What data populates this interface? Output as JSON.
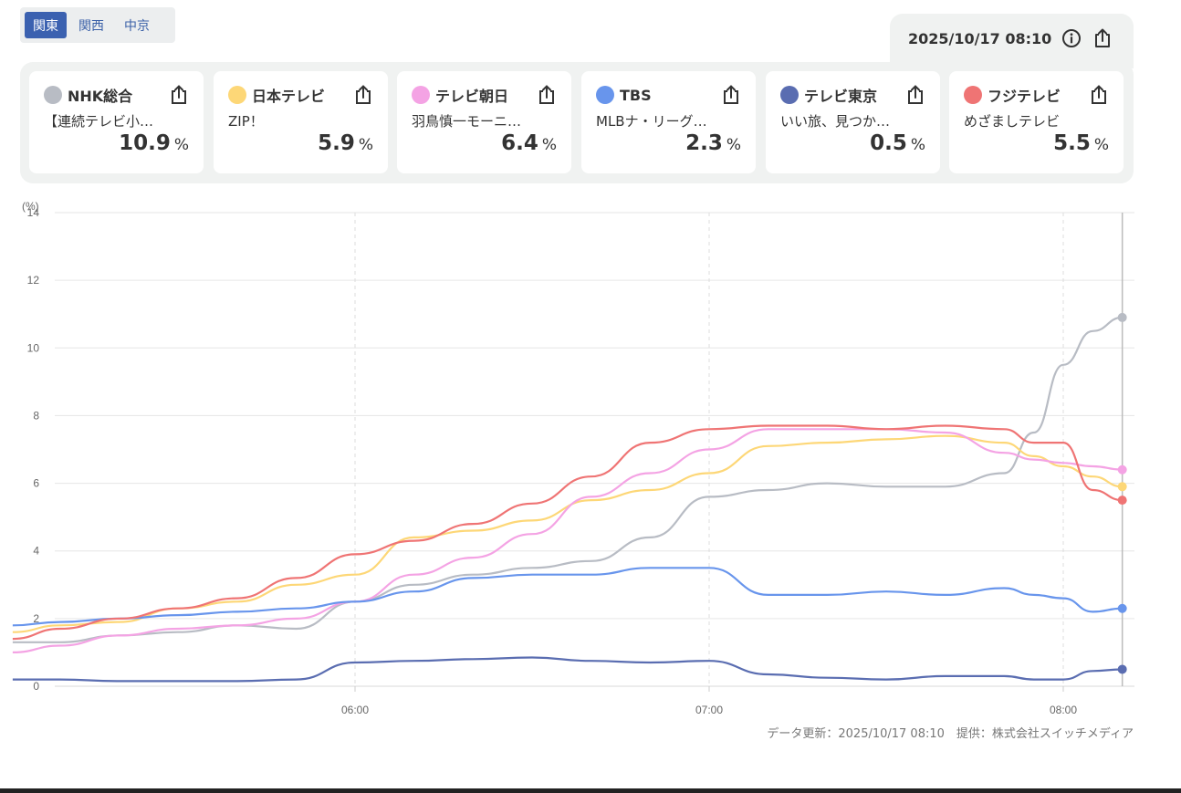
{
  "regions": [
    "関東",
    "関西",
    "中京"
  ],
  "active_region": "関東",
  "timestamp": "2025/10/17 08:10",
  "icons": {
    "info": "info-icon",
    "share": "share-icon"
  },
  "channels": [
    {
      "name": "NHK総合",
      "program": "【連続テレビ小…",
      "rating": "10.9",
      "unit": "%",
      "color": "#b8bcc4"
    },
    {
      "name": "日本テレビ",
      "program": "ZIP！",
      "rating": "5.9",
      "unit": "%",
      "color": "#fdd777"
    },
    {
      "name": "テレビ朝日",
      "program": "羽鳥慎一モーニ…",
      "rating": "6.4",
      "unit": "%",
      "color": "#f4a3e4"
    },
    {
      "name": "TBS",
      "program": "MLBナ・リーグ…",
      "rating": "2.3",
      "unit": "%",
      "color": "#6895ec"
    },
    {
      "name": "テレビ東京",
      "program": "いい旅、見つか…",
      "rating": "0.5",
      "unit": "%",
      "color": "#5a6db1"
    },
    {
      "name": "フジテレビ",
      "program": "めざましテレビ",
      "rating": "5.5",
      "unit": "%",
      "color": "#ef7474"
    }
  ],
  "footer": "データ更新：2025/10/17 08:10　提供：株式会社スイッチメディア",
  "chart_data": {
    "type": "line",
    "yunit": "(%)",
    "ylim": [
      0,
      14
    ],
    "yticks": [
      0,
      2,
      4,
      6,
      8,
      10,
      12,
      14
    ],
    "xlim": [
      "05:00",
      "08:13"
    ],
    "xticks": [
      "06:00",
      "07:00",
      "08:00"
    ],
    "grid": true,
    "x": [
      "05:02",
      "05:10",
      "05:20",
      "05:30",
      "05:40",
      "05:50",
      "06:00",
      "06:10",
      "06:20",
      "06:30",
      "06:40",
      "06:50",
      "07:00",
      "07:10",
      "07:20",
      "07:30",
      "07:40",
      "07:50",
      "07:55",
      "08:00",
      "08:05",
      "08:10"
    ],
    "series": [
      {
        "name": "NHK総合",
        "color": "#b8bcc4",
        "values": [
          1.3,
          1.3,
          1.5,
          1.6,
          1.8,
          1.7,
          2.5,
          3.0,
          3.3,
          3.5,
          3.7,
          4.4,
          5.6,
          5.8,
          6.0,
          5.9,
          5.9,
          6.3,
          7.5,
          9.5,
          10.5,
          10.9
        ]
      },
      {
        "name": "日本テレビ",
        "color": "#fdd777",
        "values": [
          1.6,
          1.8,
          1.9,
          2.3,
          2.5,
          3.0,
          3.3,
          4.4,
          4.6,
          4.9,
          5.5,
          5.8,
          6.3,
          7.1,
          7.2,
          7.3,
          7.4,
          7.2,
          6.8,
          6.5,
          6.2,
          5.9
        ]
      },
      {
        "name": "テレビ朝日",
        "color": "#f4a3e4",
        "values": [
          1.0,
          1.2,
          1.5,
          1.7,
          1.8,
          2.0,
          2.5,
          3.3,
          3.8,
          4.5,
          5.6,
          6.3,
          7.0,
          7.6,
          7.6,
          7.6,
          7.5,
          6.9,
          6.7,
          6.6,
          6.5,
          6.4
        ]
      },
      {
        "name": "TBS",
        "color": "#6895ec",
        "values": [
          1.8,
          1.9,
          2.0,
          2.1,
          2.2,
          2.3,
          2.5,
          2.8,
          3.2,
          3.3,
          3.3,
          3.5,
          3.5,
          2.7,
          2.7,
          2.8,
          2.7,
          2.9,
          2.7,
          2.6,
          2.2,
          2.3
        ]
      },
      {
        "name": "テレビ東京",
        "color": "#5a6db1",
        "values": [
          0.2,
          0.2,
          0.15,
          0.15,
          0.15,
          0.2,
          0.7,
          0.75,
          0.8,
          0.85,
          0.75,
          0.7,
          0.75,
          0.35,
          0.25,
          0.2,
          0.3,
          0.3,
          0.2,
          0.2,
          0.45,
          0.5
        ]
      },
      {
        "name": "フジテレビ",
        "color": "#ef7474",
        "values": [
          1.4,
          1.7,
          2.0,
          2.3,
          2.6,
          3.2,
          3.9,
          4.3,
          4.8,
          5.4,
          6.2,
          7.2,
          7.6,
          7.7,
          7.7,
          7.6,
          7.7,
          7.6,
          7.2,
          7.2,
          5.8,
          5.5
        ]
      }
    ]
  }
}
